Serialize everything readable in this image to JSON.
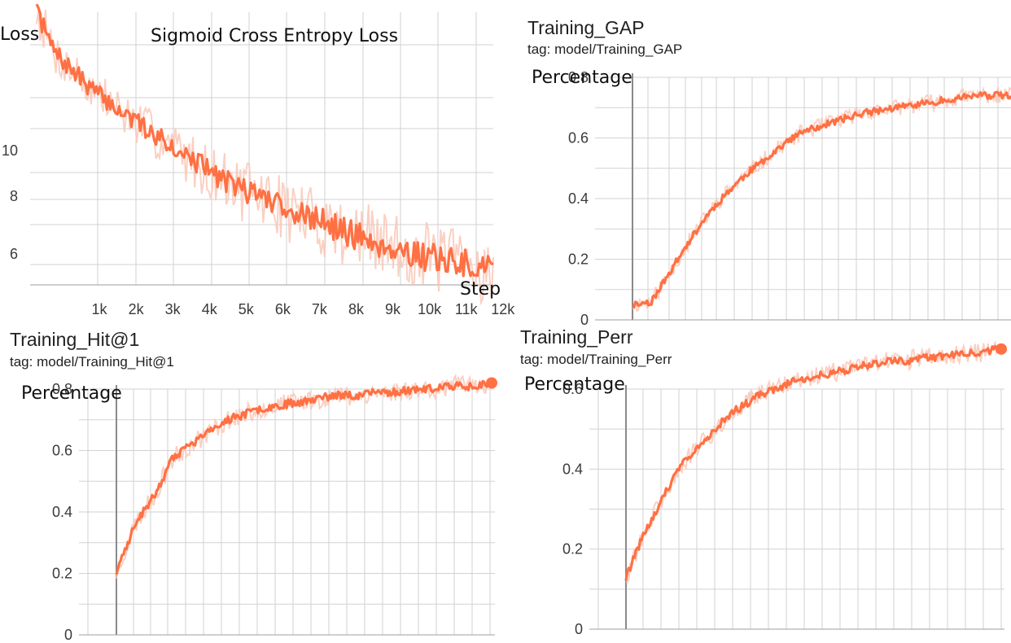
{
  "colors": {
    "series": "#ff7043",
    "raw": "#f9c4b4",
    "grid": "#d2d2d2",
    "axis": "#8a8a8a"
  },
  "panels": {
    "loss": {
      "chart_title": "Sigmoid Cross Entropy Loss",
      "ylabel": "Loss",
      "xlabel": "Step"
    },
    "gap": {
      "title": "Training_GAP",
      "tag": "tag: model/Training_GAP",
      "ylabel": "Percentage"
    },
    "hit1": {
      "title": "Training_Hit@1",
      "tag": "tag: model/Training_Hit@1",
      "ylabel": "Percentage"
    },
    "perr": {
      "title": "Training_Perr",
      "tag": "tag: model/Training_Perr",
      "ylabel": "Percentage"
    }
  },
  "chart_data": [
    {
      "id": "loss",
      "type": "line",
      "title": "Sigmoid Cross Entropy Loss",
      "xlabel": "Step",
      "ylabel": "Loss",
      "x_ticks": [
        1000,
        2000,
        3000,
        4000,
        5000,
        6000,
        7000,
        8000,
        9000,
        10000,
        11000,
        12000
      ],
      "x_tick_labels": [
        "1k",
        "2k",
        "3k",
        "4k",
        "5k",
        "6k",
        "7k",
        "8k",
        "9k",
        "10k",
        "11k",
        "12k"
      ],
      "y_ticks": [
        6,
        8,
        10
      ],
      "y_tick_labels": [
        "6",
        "8",
        "10"
      ],
      "xlim": [
        0,
        12450
      ],
      "ylim": [
        5,
        17.5
      ],
      "grid": true,
      "series": [
        {
          "x": [
            0,
            500,
            1000,
            1500,
            2000,
            2500,
            3000,
            3500,
            4000,
            4500,
            5000,
            5500,
            6000,
            6500,
            7000,
            7500,
            8000,
            8500,
            9000,
            9500,
            10000,
            10500,
            11000,
            11500,
            12000,
            12400
          ],
          "y": [
            17.4,
            15.2,
            14.2,
            13.3,
            12.5,
            11.8,
            11.1,
            10.5,
            9.9,
            9.3,
            8.8,
            8.4,
            8.1,
            7.8,
            7.5,
            7.2,
            7.0,
            6.7,
            6.5,
            6.3,
            6.1,
            5.9,
            5.8,
            5.7,
            5.5,
            5.4
          ]
        }
      ]
    },
    {
      "id": "gap",
      "type": "line",
      "ylabel": "Percentage",
      "y_ticks": [
        0,
        0.2,
        0.4,
        0.6,
        0.8
      ],
      "y_tick_labels": [
        "0",
        "0.2",
        "0.4",
        "0.6",
        "0.8"
      ],
      "ylim": [
        0,
        0.8
      ],
      "grid": true,
      "series": [
        {
          "x": [
            0.0,
            0.05,
            0.1,
            0.15,
            0.2,
            0.25,
            0.3,
            0.35,
            0.4,
            0.45,
            0.5,
            0.55,
            0.6,
            0.65,
            0.7,
            0.75,
            0.8,
            0.85,
            0.9,
            0.95,
            1.0
          ],
          "y": [
            0.05,
            0.06,
            0.16,
            0.26,
            0.35,
            0.42,
            0.48,
            0.53,
            0.58,
            0.62,
            0.64,
            0.66,
            0.68,
            0.69,
            0.7,
            0.71,
            0.72,
            0.73,
            0.74,
            0.74,
            0.74
          ]
        }
      ]
    },
    {
      "id": "hit1",
      "type": "line",
      "ylabel": "Percentage",
      "y_ticks": [
        0,
        0.2,
        0.4,
        0.6,
        0.8
      ],
      "y_tick_labels": [
        "0",
        "0.2",
        "0.4",
        "0.6",
        "0.8"
      ],
      "ylim": [
        0,
        0.8
      ],
      "grid": true,
      "series": [
        {
          "x": [
            0.0,
            0.05,
            0.1,
            0.15,
            0.2,
            0.25,
            0.3,
            0.35,
            0.4,
            0.45,
            0.5,
            0.55,
            0.6,
            0.65,
            0.7,
            0.75,
            0.8,
            0.85,
            0.9,
            0.95,
            1.0
          ],
          "y": [
            0.2,
            0.36,
            0.45,
            0.57,
            0.62,
            0.66,
            0.7,
            0.72,
            0.74,
            0.75,
            0.76,
            0.77,
            0.78,
            0.78,
            0.79,
            0.79,
            0.8,
            0.8,
            0.81,
            0.81,
            0.82
          ]
        }
      ]
    },
    {
      "id": "perr",
      "type": "line",
      "ylabel": "Percentage",
      "y_ticks": [
        0,
        0.2,
        0.4,
        0.6
      ],
      "y_tick_labels": [
        "0",
        "0.2",
        "0.4",
        "0.6"
      ],
      "ylim": [
        0,
        0.6
      ],
      "grid": true,
      "series": [
        {
          "x": [
            0.0,
            0.05,
            0.1,
            0.15,
            0.2,
            0.25,
            0.3,
            0.35,
            0.4,
            0.45,
            0.5,
            0.55,
            0.6,
            0.65,
            0.7,
            0.75,
            0.8,
            0.85,
            0.9,
            0.95,
            1.0
          ],
          "y": [
            0.13,
            0.24,
            0.33,
            0.41,
            0.46,
            0.51,
            0.55,
            0.58,
            0.6,
            0.62,
            0.63,
            0.64,
            0.65,
            0.66,
            0.67,
            0.67,
            0.68,
            0.68,
            0.69,
            0.69,
            0.7
          ]
        }
      ]
    }
  ]
}
